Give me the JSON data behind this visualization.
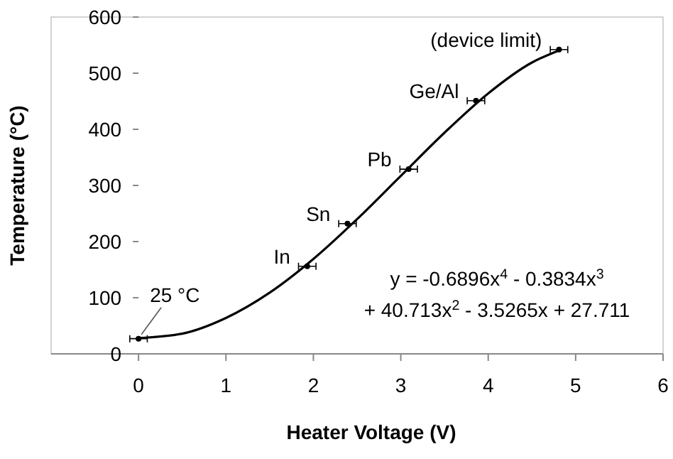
{
  "chart_data": {
    "type": "scatter",
    "xlabel": "Heater Voltage (V)",
    "ylabel": "Temperature (°C)",
    "xlim": [
      -1,
      6
    ],
    "xticks": [
      0,
      1,
      2,
      3,
      4,
      5,
      6
    ],
    "ylim": [
      0,
      600
    ],
    "yticks": [
      0,
      100,
      200,
      300,
      400,
      500,
      600
    ],
    "grid": false,
    "marker": "circle",
    "series": [
      {
        "type": "scatter",
        "color": "#000000",
        "x": [
          0,
          1.93,
          2.39,
          3.09,
          3.86,
          4.81
        ],
        "values": [
          27,
          156,
          232,
          329,
          451,
          542
        ],
        "xerrors": [
          0.1,
          0.1,
          0.1,
          0.1,
          0.1,
          0.1
        ]
      },
      {
        "type": "line",
        "color": "#000000",
        "marker": "none",
        "line_style": "solid",
        "x": [
          0,
          0.5,
          1,
          1.5,
          2,
          2.5,
          3,
          3.5,
          4,
          4.5,
          4.8
        ],
        "values": [
          28,
          36,
          64,
          109,
          169,
          240,
          317,
          394,
          464,
          519,
          540
        ]
      }
    ],
    "annotations": [
      {
        "text": "25 °C",
        "x": 0,
        "y": 27
      },
      {
        "text": "In",
        "x": 1.93,
        "y": 156
      },
      {
        "text": "Sn",
        "x": 2.39,
        "y": 232
      },
      {
        "text": "Pb",
        "x": 3.09,
        "y": 329
      },
      {
        "text": "Ge/Al",
        "x": 3.86,
        "y": 451
      },
      {
        "text": "(device limit)",
        "x": 4.81,
        "y": 542
      },
      "y = -0.6896x$^{4}$ - 0.3834x$^{3}$",
      "+ 40.713x$^{2}$ - 3.5265x + 27.711"
    ]
  }
}
